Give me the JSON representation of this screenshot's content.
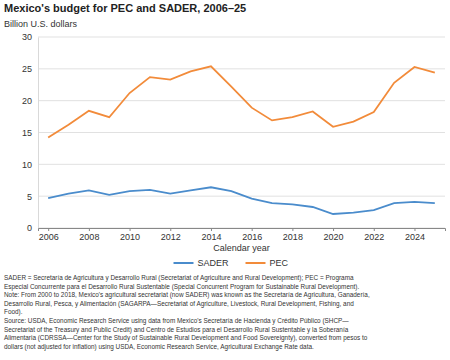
{
  "chart_data": {
    "type": "line",
    "title": "Mexico's budget for PEC and SADER, 2006–25",
    "ylabel": "Billion U.S. dollars",
    "xlabel": "Calendar year",
    "x": [
      2006,
      2007,
      2008,
      2009,
      2010,
      2011,
      2012,
      2013,
      2014,
      2015,
      2016,
      2017,
      2018,
      2019,
      2020,
      2021,
      2022,
      2023,
      2024,
      2025
    ],
    "series": [
      {
        "name": "SADER",
        "color": "#4a8ccc",
        "values": [
          4.7,
          5.4,
          5.9,
          5.2,
          5.8,
          6.0,
          5.4,
          5.9,
          6.4,
          5.8,
          4.6,
          3.9,
          3.7,
          3.3,
          2.2,
          2.4,
          2.8,
          3.9,
          4.1,
          3.9
        ]
      },
      {
        "name": "PEC",
        "color": "#f28b3a",
        "values": [
          14.2,
          16.2,
          18.4,
          17.4,
          21.2,
          23.7,
          23.3,
          24.6,
          25.4,
          22.2,
          18.9,
          16.9,
          17.4,
          18.3,
          15.9,
          16.7,
          18.2,
          22.8,
          25.3,
          24.4
        ]
      }
    ],
    "xlim": [
      2005.5,
      2025.5
    ],
    "xticks": [
      2006,
      2008,
      2010,
      2012,
      2014,
      2016,
      2018,
      2020,
      2022,
      2024
    ],
    "ylim": [
      0,
      30
    ],
    "yticks": [
      0,
      5,
      10,
      15,
      20,
      25,
      30
    ],
    "grid": true,
    "legend": "bottom",
    "notes": [
      "SADER = Secretaría de Agricultura y Desarrollo Rural (Secretariat of Agriculture and Rural Development); PEC = Programa",
      "Especial Concurrente para el Desarrollo Rural Sustentable (Special Concurrent Program for Sustainable Rural Development).",
      "Note: From 2000 to 2018, Mexico's agricultural secretariat (now SADER) was known as the Secretaría de Agricultura, Ganadería,",
      "Desarrollo Rural, Pesca, y Alimentación (SAGARPA—Secretariat of Agriculture, Livestock, Rural Development, Fishing, and",
      "Food).",
      "Source: USDA, Economic Research Service using data from Mexico's Secretaría de Hacienda y Crédito Público (SHCP—",
      "Secretariat of the Treasury and Public Credit) and Centro de Estudios para el Desarrollo Rural Sustentable y la Soberanía",
      "Alimentaria (CDRSSA—Center for the Study of Sustainable Rural Development and Food Sovereignty), converted from pesos to",
      "dollars (not adjusted for inflation) using USDA, Economic Research Service, Agricultural Exchange Rate data."
    ]
  }
}
